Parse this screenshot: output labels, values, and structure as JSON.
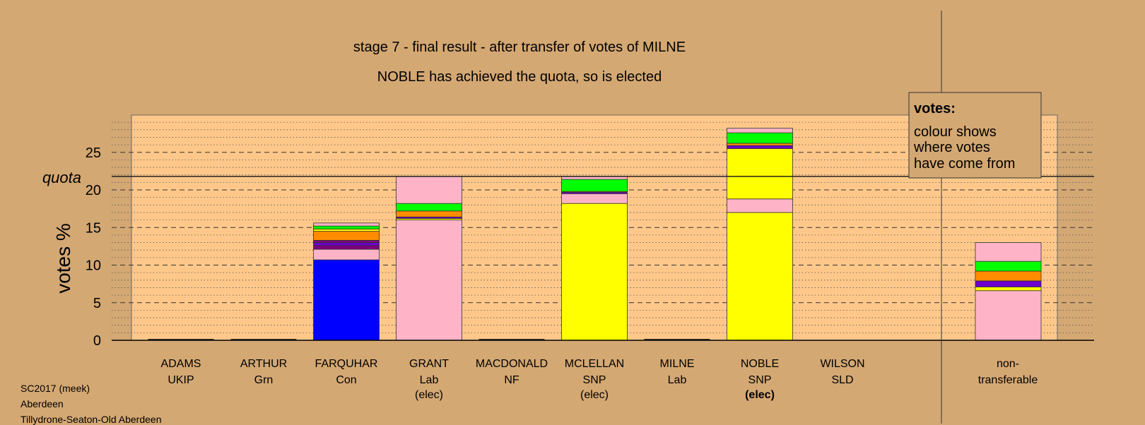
{
  "chart_data": {
    "type": "bar",
    "stacked": true,
    "title": "stage 7 - final result - after transfer of votes of MILNE",
    "subtitle": "NOBLE has achieved the quota, so is elected",
    "ylabel": "votes %",
    "ylim": [
      0,
      30
    ],
    "yticks": [
      0,
      5,
      10,
      15,
      20,
      25
    ],
    "quota": 21.8,
    "quota_label": "quota",
    "grid": true,
    "candidates": [
      {
        "name": "ADAMS",
        "party": "UKIP",
        "status": "",
        "segments": []
      },
      {
        "name": "ARTHUR",
        "party": "Grn",
        "status": "",
        "segments": []
      },
      {
        "name": "FARQUHAR",
        "party": "Con",
        "status": "",
        "segments": [
          {
            "color": "#0000FF",
            "value": 10.7
          },
          {
            "color": "#FFB3C6",
            "value": 1.4
          },
          {
            "color": "#800080",
            "value": 0.5
          },
          {
            "color": "#6B00CC",
            "value": 0.4
          },
          {
            "color": "#800080",
            "value": 0.3
          },
          {
            "color": "#FF8C00",
            "value": 1.2
          },
          {
            "color": "#FFFF00",
            "value": 0.3
          },
          {
            "color": "#00FF00",
            "value": 0.4
          },
          {
            "color": "#FFB3C6",
            "value": 0.4
          }
        ]
      },
      {
        "name": "GRANT",
        "party": "Lab",
        "status": "(elec)",
        "segments": [
          {
            "color": "#FFB3C6",
            "value": 16.0
          },
          {
            "color": "#FFFF00",
            "value": 0.2
          },
          {
            "color": "#6B00CC",
            "value": 0.2
          },
          {
            "color": "#FF8C00",
            "value": 0.8
          },
          {
            "color": "#00FF00",
            "value": 1.0
          },
          {
            "color": "#FFB3C6",
            "value": 3.6
          }
        ]
      },
      {
        "name": "MACDONALD",
        "party": "NF",
        "status": "",
        "segments": []
      },
      {
        "name": "MCLELLAN",
        "party": "SNP",
        "status": "(elec)",
        "segments": [
          {
            "color": "#FFFF00",
            "value": 18.2
          },
          {
            "color": "#FFB3C6",
            "value": 1.3
          },
          {
            "color": "#6B00CC",
            "value": 0.2
          },
          {
            "color": "#FF8C00",
            "value": 0.1
          },
          {
            "color": "#00FF00",
            "value": 1.6
          },
          {
            "color": "#FFB3C6",
            "value": 0.4
          }
        ]
      },
      {
        "name": "MILNE",
        "party": "Lab",
        "status": "",
        "segments": []
      },
      {
        "name": "NOBLE",
        "party": "SNP",
        "status": "(elec)",
        "segments": [
          {
            "color": "#FFFF00",
            "value": 17.0
          },
          {
            "color": "#FFB3C6",
            "value": 1.8
          },
          {
            "color": "#FFFF00",
            "value": 6.7
          },
          {
            "color": "#6B00CC",
            "value": 0.4
          },
          {
            "color": "#FF8C00",
            "value": 0.3
          },
          {
            "color": "#00FF00",
            "value": 1.4
          },
          {
            "color": "#FFB3C6",
            "value": 0.6
          }
        ]
      }
    ],
    "extra_candidate": {
      "name": "WILSON",
      "party": "SLD",
      "status": ""
    },
    "nontransferable": {
      "label_line1": "non-",
      "label_line2": "transferable",
      "segments": [
        {
          "color": "#FFB3C6",
          "value": 6.6
        },
        {
          "color": "#FFFF00",
          "value": 0.5
        },
        {
          "color": "#6B00CC",
          "value": 0.8
        },
        {
          "color": "#FF8C00",
          "value": 1.3
        },
        {
          "color": "#00FF00",
          "value": 1.3
        },
        {
          "color": "#FFB3C6",
          "value": 2.5
        }
      ]
    }
  },
  "legend": {
    "heading": "votes:",
    "line1": "colour shows",
    "line2": "where votes",
    "line3": "have come from"
  },
  "footer": {
    "line1": "SC2017 (meek)",
    "line2": "Aberdeen",
    "line3": "Tillydrone-Seaton-Old Aberdeen"
  },
  "colors": {
    "background": "#D4A873",
    "plot_area": "#FFC88A",
    "grid": "#555555"
  }
}
